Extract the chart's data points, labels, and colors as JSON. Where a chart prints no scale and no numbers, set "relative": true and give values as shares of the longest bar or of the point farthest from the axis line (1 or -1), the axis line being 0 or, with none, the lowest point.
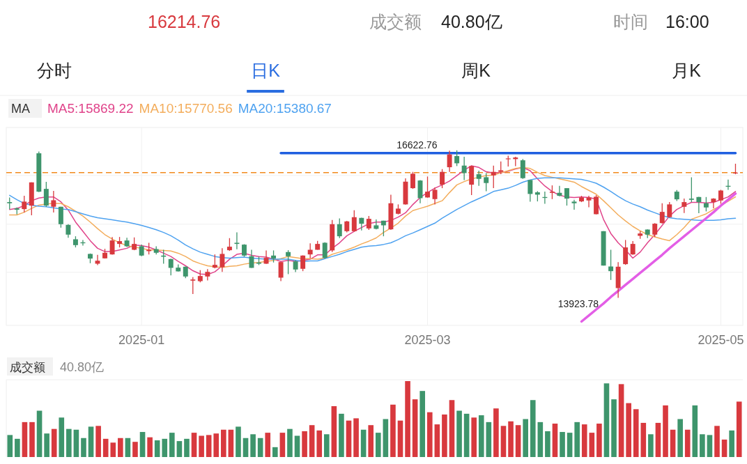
{
  "chart_data": [
    {
      "type": "candlestick",
      "legend": "top",
      "legend_title": "MA",
      "grid": true,
      "tick_labels": "x",
      "annotations": [
        "16214.76",
        "成交额",
        "40.80亿",
        "时间",
        "16:00",
        "分时",
        "日K",
        "周K",
        "月K",
        "16622.76",
        "13923.78"
      ],
      "ylim": [
        13420,
        17040
      ],
      "yticks": [
        {
          "value": 16163,
          "label": null
        },
        {
          "value": 15271,
          "label": null
        },
        {
          "value": 14391,
          "label": null
        }
      ],
      "categories": [
        null,
        null,
        null,
        null,
        null,
        null,
        null,
        null,
        null,
        null,
        null,
        null,
        null,
        null,
        null,
        null,
        null,
        null,
        "2025-01",
        null,
        null,
        null,
        null,
        null,
        null,
        null,
        null,
        null,
        null,
        null,
        null,
        null,
        null,
        null,
        null,
        null,
        null,
        null,
        null,
        null,
        null,
        null,
        null,
        null,
        null,
        null,
        null,
        null,
        null,
        null,
        null,
        null,
        null,
        null,
        null,
        null,
        null,
        "2025-03",
        null,
        null,
        null,
        null,
        null,
        null,
        null,
        null,
        null,
        null,
        null,
        null,
        null,
        null,
        null,
        null,
        null,
        null,
        null,
        null,
        null,
        null,
        null,
        null,
        null,
        null,
        null,
        null,
        null,
        null,
        null,
        null,
        null,
        null,
        null,
        null,
        null,
        null,
        null,
        "2025-05",
        null,
        null
      ],
      "ohlc": [
        [
          15675,
          15760,
          15547,
          15654
        ],
        [
          15560,
          15577,
          15450,
          15535
        ],
        [
          15547,
          15790,
          15484,
          15684
        ],
        [
          15611,
          16036,
          15433,
          16036
        ],
        [
          16568,
          16600,
          15858,
          15866
        ],
        [
          15917,
          16045,
          15590,
          15611
        ],
        [
          15590,
          15879,
          15484,
          15709
        ],
        [
          15590,
          15590,
          15207,
          15271
        ],
        [
          15258,
          15271,
          15024,
          15080
        ],
        [
          14995,
          15050,
          14846,
          14888
        ],
        [
          14939,
          14982,
          14880,
          14922
        ],
        [
          14727,
          14735,
          14557,
          14642
        ],
        [
          14548,
          14710,
          14523,
          14603
        ],
        [
          14646,
          14820,
          14642,
          14748
        ],
        [
          14718,
          15037,
          14714,
          14973
        ],
        [
          14910,
          15037,
          14846,
          14961
        ],
        [
          14973,
          15024,
          14854,
          14867
        ],
        [
          14803,
          15029,
          14795,
          14910
        ],
        [
          14867,
          14897,
          14684,
          14697
        ],
        [
          14778,
          14931,
          14718,
          14803
        ],
        [
          14816,
          14867,
          14718,
          14748
        ],
        [
          14697,
          14803,
          14548,
          14676
        ],
        [
          14633,
          14642,
          14336,
          14472
        ],
        [
          14476,
          14535,
          14404,
          14408
        ],
        [
          14493,
          14497,
          14285,
          14314
        ],
        [
          14238,
          14302,
          13995,
          14259
        ],
        [
          14229,
          14429,
          14208,
          14323
        ],
        [
          14314,
          14450,
          14242,
          14399
        ],
        [
          14476,
          14718,
          14463,
          14527
        ],
        [
          14484,
          14833,
          14399,
          14727
        ],
        [
          14795,
          15016,
          14782,
          14859
        ],
        [
          14931,
          15122,
          14812,
          14910
        ],
        [
          14897,
          14905,
          14676,
          14697
        ],
        [
          14684,
          14803,
          14472,
          14472
        ],
        [
          14569,
          14676,
          14523,
          14548
        ],
        [
          14548,
          14791,
          14544,
          14655
        ],
        [
          14697,
          14791,
          14570,
          14642
        ],
        [
          14293,
          14578,
          14229,
          14578
        ],
        [
          14761,
          14795,
          14357,
          14684
        ],
        [
          14591,
          14612,
          14395,
          14442
        ],
        [
          14455,
          14701,
          14412,
          14697
        ],
        [
          14718,
          14922,
          14646,
          14803
        ],
        [
          14803,
          14965,
          14803,
          14910
        ],
        [
          14931,
          14939,
          14642,
          14655
        ],
        [
          14791,
          15348,
          14761,
          15271
        ],
        [
          15271,
          15377,
          15016,
          15050
        ],
        [
          15143,
          15331,
          15122,
          15322
        ],
        [
          15143,
          15526,
          15135,
          15399
        ],
        [
          15386,
          15390,
          15156,
          15280
        ],
        [
          15194,
          15420,
          15165,
          15369
        ],
        [
          15250,
          15356,
          15177,
          15186
        ],
        [
          15335,
          15335,
          15050,
          15250
        ],
        [
          15177,
          15811,
          15165,
          15654
        ],
        [
          15462,
          15633,
          15450,
          15556
        ],
        [
          15633,
          16109,
          15628,
          16049
        ],
        [
          15930,
          16228,
          15917,
          16194
        ],
        [
          16070,
          16079,
          15654,
          15747
        ],
        [
          15760,
          16143,
          15756,
          15866
        ],
        [
          15730,
          15943,
          15633,
          15900
        ],
        [
          15994,
          16279,
          15930,
          16228
        ],
        [
          16313,
          16615,
          16228,
          16547
        ],
        [
          16517,
          16622.76,
          16334,
          16385
        ],
        [
          16343,
          16504,
          16079,
          16206
        ],
        [
          15994,
          16343,
          15803,
          16334
        ],
        [
          16185,
          16249,
          15973,
          16100
        ],
        [
          16130,
          16206,
          15875,
          16024
        ],
        [
          16164,
          16343,
          15930,
          16228
        ],
        [
          16228,
          16419,
          16185,
          16257
        ],
        [
          16462,
          16525,
          16326,
          16474
        ],
        [
          16462,
          16504,
          16334,
          16491
        ],
        [
          16440,
          16462,
          16100,
          16113
        ],
        [
          16079,
          16079,
          15684,
          15824
        ],
        [
          15854,
          15875,
          15688,
          15811
        ],
        [
          15768,
          15866,
          15645,
          15751
        ],
        [
          15845,
          15981,
          15730,
          15866
        ],
        [
          15845,
          15973,
          15781,
          15790
        ],
        [
          15930,
          15930,
          15611,
          15739
        ],
        [
          15684,
          15717,
          15535,
          15654
        ],
        [
          15688,
          15790,
          15675,
          15760
        ],
        [
          15705,
          15790,
          15581,
          15760
        ],
        [
          15454,
          15803,
          15450,
          15773
        ],
        [
          15143,
          15143,
          14514,
          14514
        ],
        [
          14497,
          14803,
          14251,
          14412
        ],
        [
          14102,
          14578,
          13923.78,
          14493
        ],
        [
          14540,
          14982,
          14527,
          14846
        ],
        [
          14718,
          14961,
          14710,
          14910
        ],
        [
          15058,
          15143,
          15003,
          15101
        ],
        [
          15173,
          15177,
          15016,
          15080
        ],
        [
          15080,
          15292,
          15037,
          15280
        ],
        [
          15292,
          15654,
          15280,
          15496
        ],
        [
          15399,
          15675,
          15390,
          15633
        ],
        [
          15866,
          15896,
          15696,
          15726
        ],
        [
          15590,
          15739,
          15475,
          15675
        ],
        [
          15739,
          16130,
          15675,
          15717
        ],
        [
          15768,
          15773,
          15471,
          15675
        ],
        [
          15654,
          15768,
          15505,
          15577
        ],
        [
          15675,
          15747,
          15560,
          15739
        ],
        [
          15705,
          15900,
          15645,
          15887
        ],
        [
          15973,
          16087,
          15900,
          15956
        ],
        [
          16206,
          16377,
          16185,
          16214.76
        ]
      ],
      "colors": [
        "#3e956c",
        "#3e956c",
        "#d8393e",
        "#d8393e",
        "#3e956c",
        "#3e956c",
        "#d8393e",
        "#3e956c",
        "#3e956c",
        "#3e956c",
        "#3e956c",
        "#3e956c",
        "#d8393e",
        "#d8393e",
        "#d8393e",
        "#d8393e",
        "#3e956c",
        "#d8393e",
        "#3e956c",
        "#d8393e",
        "#3e956c",
        "#3e956c",
        "#3e956c",
        "#3e956c",
        "#3e956c",
        "#d8393e",
        "#d8393e",
        "#d8393e",
        "#d8393e",
        "#d8393e",
        "#d8393e",
        "#3e956c",
        "#3e956c",
        "#3e956c",
        "#3e956c",
        "#d8393e",
        "#3e956c",
        "#d8393e",
        "#3e956c",
        "#3e956c",
        "#d8393e",
        "#d8393e",
        "#d8393e",
        "#3e956c",
        "#d8393e",
        "#3e956c",
        "#d8393e",
        "#d8393e",
        "#3e956c",
        "#d8393e",
        "#3e956c",
        "#3e956c",
        "#d8393e",
        "#d8393e",
        "#d8393e",
        "#d8393e",
        "#3e956c",
        "#d8393e",
        "#d8393e",
        "#d8393e",
        "#d8393e",
        "#3e956c",
        "#3e956c",
        "#d8393e",
        "#3e956c",
        "#3e956c",
        "#d8393e",
        "#d8393e",
        "#d8393e",
        "#d8393e",
        "#3e956c",
        "#3e956c",
        "#3e956c",
        "#3e956c",
        "#d8393e",
        "#3e956c",
        "#3e956c",
        "#3e956c",
        "#d8393e",
        "#d8393e",
        "#d8393e",
        "#3e956c",
        "#3e956c",
        "#d8393e",
        "#d8393e",
        "#d8393e",
        "#d8393e",
        "#3e956c",
        "#d8393e",
        "#d8393e",
        "#d8393e",
        "#3e956c",
        "#d8393e",
        "#3e956c",
        "#3e956c",
        "#3e956c",
        "#d8393e",
        "#d8393e",
        "#3e956c",
        "#d8393e"
      ],
      "ref_lines": [
        {
          "axis": "y",
          "value": 16214.76,
          "color": "#f28a1c",
          "line_style": "dashed"
        }
      ],
      "series": [
        {
          "name": "MA5:15869.22",
          "type": "line",
          "color": "#e0438a",
          "values": [
            15540,
            15560,
            15610,
            15700,
            15750,
            15770,
            15770,
            15680,
            15530,
            15310,
            15140,
            14970,
            14830,
            14770,
            14770,
            14800,
            14830,
            14890,
            14880,
            14850,
            14800,
            14740,
            14680,
            14590,
            14510,
            14420,
            14360,
            14350,
            14400,
            14510,
            14630,
            14720,
            14740,
            14700,
            14680,
            14670,
            14630,
            14590,
            14610,
            14590,
            14610,
            14630,
            14710,
            14710,
            14830,
            14930,
            15060,
            15140,
            15210,
            15280,
            15310,
            15310,
            15340,
            15400,
            15480,
            15630,
            15760,
            15850,
            15930,
            15990,
            16060,
            16160,
            16260,
            16340,
            16310,
            16230,
            16210,
            16210,
            16240,
            16280,
            16310,
            16250,
            16100,
            15970,
            15870,
            15800,
            15770,
            15760,
            15770,
            15760,
            15730,
            15360,
            15100,
            14930,
            14800,
            14650,
            14760,
            14930,
            15080,
            15250,
            15420,
            15540,
            15610,
            15670,
            15670,
            15660,
            15670,
            15720,
            15770,
            15870
          ]
        },
        {
          "name": "MA10:15770.56",
          "type": "line",
          "color": "#f3ad5c",
          "values": [
            15440,
            15440,
            15490,
            15560,
            15620,
            15640,
            15650,
            15650,
            15590,
            15510,
            15420,
            15310,
            15190,
            15080,
            15000,
            14930,
            14880,
            14850,
            14830,
            14800,
            14800,
            14790,
            14780,
            14740,
            14680,
            14600,
            14550,
            14510,
            14490,
            14480,
            14500,
            14510,
            14540,
            14560,
            14570,
            14590,
            14610,
            14640,
            14680,
            14660,
            14640,
            14640,
            14630,
            14650,
            14720,
            14760,
            14800,
            14850,
            14910,
            14960,
            15020,
            15120,
            15200,
            15290,
            15420,
            15520,
            15560,
            15600,
            15650,
            15700,
            15850,
            15990,
            16050,
            16100,
            16130,
            16160,
            16170,
            16210,
            16250,
            16290,
            16310,
            16290,
            16220,
            16160,
            16130,
            16100,
            16070,
            16040,
            15960,
            15890,
            15820,
            15700,
            15570,
            15440,
            15330,
            15230,
            15150,
            15080,
            15040,
            15000,
            14970,
            15080,
            15210,
            15360,
            15410,
            15460,
            15540,
            15610,
            15690,
            15770
          ]
        },
        {
          "name": "MA20:15380.67",
          "type": "line",
          "color": "#4ea2f0",
          "values": [
            15800,
            15720,
            15650,
            15620,
            15600,
            15590,
            15570,
            15550,
            15540,
            15500,
            15460,
            15420,
            15390,
            15370,
            15350,
            15330,
            15310,
            15280,
            15250,
            15210,
            15170,
            15120,
            15060,
            14980,
            14890,
            14820,
            14760,
            14720,
            14680,
            14660,
            14650,
            14660,
            14670,
            14650,
            14640,
            14630,
            14630,
            14630,
            14630,
            14610,
            14590,
            14600,
            14600,
            14640,
            14680,
            14720,
            14770,
            14810,
            14850,
            14870,
            14880,
            14900,
            14930,
            14990,
            15060,
            15110,
            15170,
            15230,
            15290,
            15380,
            15460,
            15540,
            15610,
            15680,
            15740,
            15800,
            15870,
            15900,
            15930,
            15980,
            16040,
            16080,
            16110,
            16120,
            16120,
            16120,
            16110,
            16100,
            16090,
            16060,
            16020,
            15950,
            15870,
            15780,
            15700,
            15640,
            15590,
            15530,
            15480,
            15430,
            15390,
            15370,
            15360,
            15350,
            15340,
            15340,
            15340,
            15350,
            15370,
            15380
          ]
        },
        {
          "type": "line",
          "color": "#1f5fe0",
          "values": [
            null,
            null,
            null,
            null,
            null,
            null,
            null,
            null,
            null,
            null,
            null,
            null,
            null,
            null,
            null,
            null,
            null,
            null,
            null,
            null,
            null,
            null,
            null,
            null,
            null,
            null,
            null,
            null,
            null,
            null,
            null,
            null,
            null,
            null,
            null,
            null,
            null,
            16570,
            16570,
            16570,
            16570,
            16570,
            16570,
            16570,
            16570,
            16570,
            16570,
            16570,
            16570,
            16570,
            16570,
            16570,
            16570,
            16570,
            16570,
            16570,
            16570,
            16570,
            16570,
            16570,
            16570,
            16570,
            16570,
            16570,
            16570,
            16570,
            16570,
            16570,
            16570,
            16570,
            16570,
            16570,
            16570,
            16570,
            16570,
            16570,
            16570,
            16570,
            16570,
            16570,
            16570,
            16570,
            16570,
            16570,
            16570,
            16570,
            16570,
            16570,
            16570,
            16570,
            16570,
            16570,
            16570,
            16570,
            16570,
            16570,
            16570,
            16570,
            16570,
            16570
          ]
        },
        {
          "type": "line",
          "color": "#e35ee6",
          "values": [
            null,
            null,
            null,
            null,
            null,
            null,
            null,
            null,
            null,
            null,
            null,
            null,
            null,
            null,
            null,
            null,
            null,
            null,
            null,
            null,
            null,
            null,
            null,
            null,
            null,
            null,
            null,
            null,
            null,
            null,
            null,
            null,
            null,
            null,
            null,
            null,
            null,
            null,
            null,
            null,
            null,
            null,
            null,
            null,
            null,
            null,
            null,
            null,
            null,
            null,
            null,
            null,
            null,
            null,
            null,
            null,
            null,
            null,
            null,
            null,
            null,
            null,
            null,
            null,
            null,
            null,
            null,
            null,
            null,
            null,
            null,
            null,
            null,
            null,
            null,
            null,
            null,
            null,
            13490,
            13600,
            13710,
            13820,
            13940,
            14050,
            14160,
            14270,
            14380,
            14490,
            14600,
            14710,
            14830,
            14940,
            15050,
            15160,
            15270,
            15380,
            15490,
            15610,
            15720,
            15830
          ]
        }
      ]
    },
    {
      "type": "bar",
      "relative": true,
      "title": "成交额",
      "subtitle": "40.80亿",
      "categories": [
        null,
        null,
        null,
        null,
        null,
        null,
        null,
        null,
        null,
        null,
        null,
        null,
        null,
        null,
        null,
        null,
        null,
        null,
        null,
        null,
        null,
        null,
        null,
        null,
        null,
        null,
        null,
        null,
        null,
        null,
        null,
        null,
        null,
        null,
        null,
        null,
        null,
        null,
        null,
        null,
        null,
        null,
        null,
        null,
        null,
        null,
        null,
        null,
        null,
        null,
        null,
        null,
        null,
        null,
        null,
        null,
        null,
        null,
        null,
        null,
        null,
        null,
        null,
        null,
        null,
        null,
        null,
        null,
        null,
        null,
        null,
        null,
        null,
        null,
        null,
        null,
        null,
        null,
        null,
        null,
        null,
        null,
        null,
        null,
        null,
        null,
        null,
        null,
        null,
        null,
        null,
        null,
        null,
        null,
        null,
        null,
        null,
        null,
        null,
        null
      ],
      "values": [
        0.29,
        0.24,
        0.46,
        0.46,
        0.61,
        0.31,
        0.37,
        0.52,
        0.37,
        0.36,
        0.25,
        0.4,
        0.41,
        0.24,
        0.19,
        0.25,
        0.25,
        0.2,
        0.33,
        0.26,
        0.22,
        0.24,
        0.32,
        0.21,
        0.24,
        0.32,
        0.28,
        0.29,
        0.31,
        0.36,
        0.36,
        0.4,
        0.25,
        0.3,
        0.25,
        0.32,
        0.13,
        0.32,
        0.37,
        0.28,
        0.34,
        0.42,
        0.35,
        0.3,
        0.67,
        0.57,
        0.48,
        0.51,
        0.36,
        0.42,
        0.32,
        0.5,
        0.69,
        0.48,
        1,
        0.76,
        0.87,
        0.59,
        0.43,
        0.56,
        0.75,
        0.61,
        0.57,
        0.52,
        0.55,
        0.46,
        0.64,
        0.41,
        0.47,
        0.42,
        0.5,
        0.75,
        0.46,
        0.34,
        0.44,
        0.33,
        0.32,
        0.46,
        0.43,
        0.32,
        0.44,
        0.97,
        0.76,
        0.96,
        0.71,
        0.63,
        0.45,
        0.3,
        0.45,
        0.68,
        0.36,
        0.5,
        0.36,
        0.68,
        0.3,
        0.29,
        0.41,
        0.23,
        0.35,
        0.73
      ],
      "colors": [
        "#3e956c",
        "#3e956c",
        "#d8393e",
        "#d8393e",
        "#3e956c",
        "#3e956c",
        "#d8393e",
        "#3e956c",
        "#3e956c",
        "#3e956c",
        "#3e956c",
        "#3e956c",
        "#d8393e",
        "#d8393e",
        "#d8393e",
        "#d8393e",
        "#3e956c",
        "#d8393e",
        "#3e956c",
        "#d8393e",
        "#3e956c",
        "#3e956c",
        "#3e956c",
        "#3e956c",
        "#3e956c",
        "#d8393e",
        "#d8393e",
        "#d8393e",
        "#d8393e",
        "#d8393e",
        "#d8393e",
        "#3e956c",
        "#3e956c",
        "#3e956c",
        "#3e956c",
        "#d8393e",
        "#3e956c",
        "#d8393e",
        "#3e956c",
        "#3e956c",
        "#d8393e",
        "#d8393e",
        "#d8393e",
        "#3e956c",
        "#d8393e",
        "#3e956c",
        "#d8393e",
        "#d8393e",
        "#3e956c",
        "#d8393e",
        "#3e956c",
        "#3e956c",
        "#d8393e",
        "#d8393e",
        "#d8393e",
        "#d8393e",
        "#3e956c",
        "#d8393e",
        "#d8393e",
        "#d8393e",
        "#d8393e",
        "#3e956c",
        "#3e956c",
        "#d8393e",
        "#3e956c",
        "#3e956c",
        "#d8393e",
        "#d8393e",
        "#d8393e",
        "#d8393e",
        "#3e956c",
        "#3e956c",
        "#3e956c",
        "#3e956c",
        "#d8393e",
        "#3e956c",
        "#3e956c",
        "#3e956c",
        "#d8393e",
        "#d8393e",
        "#d8393e",
        "#3e956c",
        "#3e956c",
        "#d8393e",
        "#d8393e",
        "#d8393e",
        "#d8393e",
        "#3e956c",
        "#d8393e",
        "#d8393e",
        "#d8393e",
        "#3e956c",
        "#d8393e",
        "#3e956c",
        "#3e956c",
        "#3e956c",
        "#d8393e",
        "#d8393e",
        "#3e956c",
        "#d8393e"
      ]
    }
  ]
}
